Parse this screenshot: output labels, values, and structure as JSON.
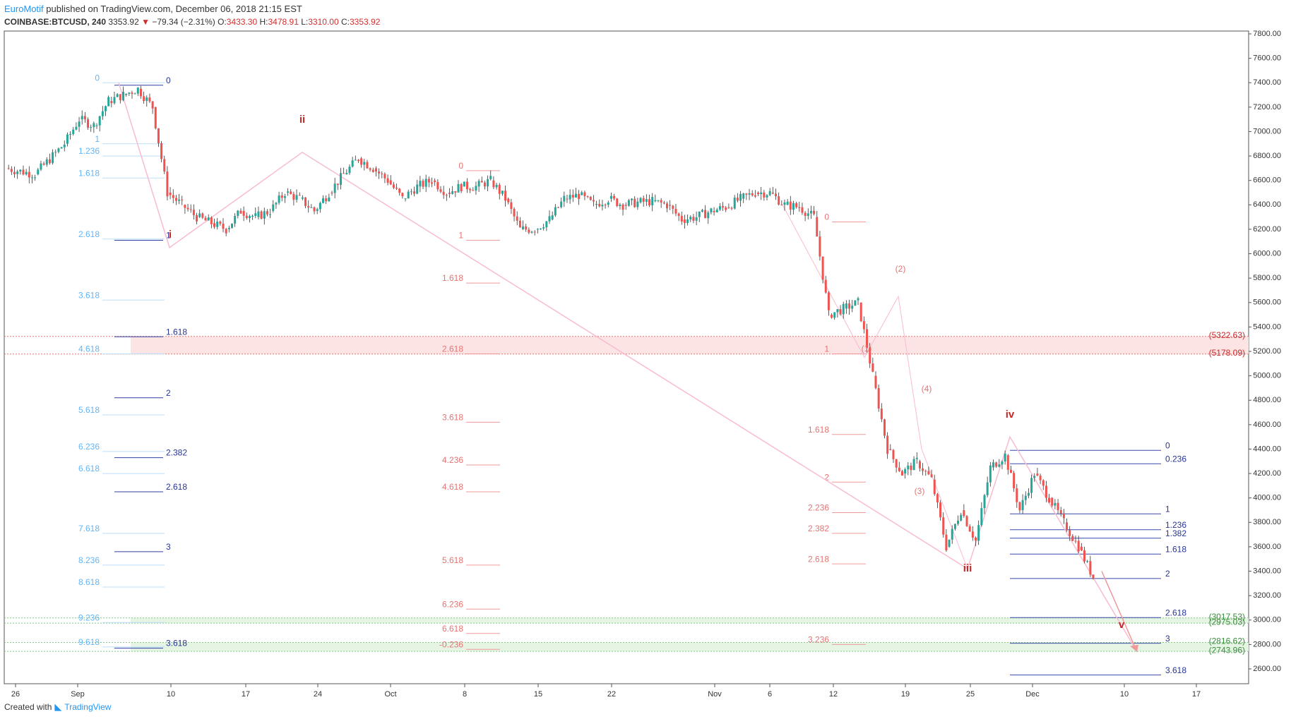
{
  "header": {
    "author": "EuroMotif",
    "published": "published on TradingView.com, December 06, 2018 21:15 EST",
    "symbol": "COINBASE:BTCUSD, 240",
    "last": "3353.92",
    "change": "−79.34 (−2.31%)",
    "o_label": "O:",
    "o": "3433.30",
    "h_label": "H:",
    "h": "3478.91",
    "l_label": "L:",
    "l": "3310.00",
    "c_label": "C:",
    "c": "3353.92"
  },
  "footer": {
    "created": "Created with",
    "brand": "TradingView"
  },
  "colors": {
    "up": "#26a69a",
    "down": "#ef5350",
    "fib_light": "#90caf9",
    "fib_dark": "#1a237e",
    "fib_pink": "#ef9a9a",
    "zone_red": "#fde4e4",
    "zone_green": "#e6f4e4"
  },
  "chart_data": {
    "type": "candlestick",
    "y_axis": {
      "min": 2600,
      "max": 7800,
      "ticks": [
        "7800.00",
        "7600.00",
        "7400.00",
        "7200.00",
        "7000.00",
        "6800.00",
        "6600.00",
        "6400.00",
        "6200.00",
        "6000.00",
        "5800.00",
        "5600.00",
        "5400.00",
        "5200.00",
        "5000.00",
        "4800.00",
        "4600.00",
        "4400.00",
        "4200.00",
        "4000.00",
        "3800.00",
        "3600.00",
        "3400.00",
        "3200.00",
        "3000.00",
        "2800.00",
        "2600.00"
      ]
    },
    "x_axis": {
      "ticks": [
        "26",
        "Sep",
        "10",
        "17",
        "24",
        "Oct",
        "8",
        "15",
        "22",
        "Nov",
        "6",
        "12",
        "19",
        "25",
        "Dec",
        "10",
        "17"
      ]
    },
    "price_path": [
      [
        0,
        6700
      ],
      [
        2,
        6650
      ],
      [
        4,
        6900
      ],
      [
        5,
        7100
      ],
      [
        6,
        7050
      ],
      [
        7,
        7250
      ],
      [
        8,
        7300
      ],
      [
        9,
        7350
      ],
      [
        10,
        7200
      ],
      [
        11,
        6500
      ],
      [
        12,
        6400
      ],
      [
        13,
        6300
      ],
      [
        14,
        6250
      ],
      [
        15,
        6200
      ],
      [
        16,
        6350
      ],
      [
        17,
        6300
      ],
      [
        18,
        6350
      ],
      [
        19,
        6500
      ],
      [
        20,
        6450
      ],
      [
        21,
        6350
      ],
      [
        22,
        6500
      ],
      [
        23,
        6650
      ],
      [
        24,
        6780
      ],
      [
        25,
        6700
      ],
      [
        26,
        6600
      ],
      [
        27,
        6450
      ],
      [
        28,
        6550
      ],
      [
        29,
        6600
      ],
      [
        30,
        6500
      ],
      [
        31,
        6550
      ],
      [
        32,
        6550
      ],
      [
        33,
        6600
      ],
      [
        34,
        6450
      ],
      [
        35,
        6200
      ],
      [
        36,
        6200
      ],
      [
        37,
        6280
      ],
      [
        38,
        6450
      ],
      [
        39,
        6480
      ],
      [
        40,
        6400
      ],
      [
        41,
        6450
      ],
      [
        42,
        6400
      ],
      [
        43,
        6420
      ],
      [
        44,
        6430
      ],
      [
        45,
        6400
      ],
      [
        46,
        6280
      ],
      [
        47,
        6300
      ],
      [
        48,
        6350
      ],
      [
        49,
        6380
      ],
      [
        50,
        6450
      ],
      [
        51,
        6500
      ],
      [
        52,
        6500
      ],
      [
        53,
        6400
      ],
      [
        54,
        6380
      ],
      [
        55,
        6300
      ],
      [
        56,
        5500
      ],
      [
        57,
        5550
      ],
      [
        58,
        5600
      ],
      [
        59,
        5000
      ],
      [
        60,
        4400
      ],
      [
        61,
        4200
      ],
      [
        62,
        4300
      ],
      [
        63,
        4150
      ],
      [
        64,
        3600
      ],
      [
        65,
        3900
      ],
      [
        66,
        3650
      ],
      [
        67,
        4250
      ],
      [
        68,
        4350
      ],
      [
        69,
        3900
      ],
      [
        70,
        4200
      ],
      [
        71,
        4000
      ],
      [
        72,
        3800
      ],
      [
        73,
        3600
      ],
      [
        74,
        3350
      ]
    ],
    "fib_left_light": {
      "levels": [
        "0",
        "1",
        "1.236",
        "1.618",
        "2.618",
        "3.618",
        "4.618",
        "5.618",
        "6.236",
        "6.618",
        "7.618",
        "8.236",
        "8.618",
        "9.236",
        "9.618"
      ],
      "prices": [
        7400,
        6900,
        6800,
        6620,
        6120,
        5620,
        5180,
        4680,
        4380,
        4200,
        3710,
        3450,
        3270,
        2980,
        2780
      ]
    },
    "fib_left_dark": {
      "levels": [
        "0",
        "1",
        "1.618",
        "2",
        "2.382",
        "2.618",
        "3",
        "3.618"
      ],
      "prices": [
        7380,
        6110,
        5320,
        4820,
        4330,
        4050,
        3560,
        2770
      ]
    },
    "fib_mid_pink": {
      "levels": [
        "0",
        "1",
        "1.618",
        "2.618",
        "3.618",
        "4.236",
        "4.618",
        "5.618",
        "6.236",
        "6.618",
        "-0.236"
      ],
      "prices": [
        6680,
        6110,
        5760,
        5180,
        4620,
        4270,
        4050,
        3450,
        3090,
        2890,
        2760
      ]
    },
    "fib_right_pink": {
      "levels": [
        "0",
        "1",
        "1.618",
        "2",
        "2.236",
        "2.382",
        "2.618",
        "3.236"
      ],
      "prices": [
        6260,
        5180,
        4520,
        4130,
        3880,
        3710,
        3460,
        2800
      ]
    },
    "fib_right_blue": {
      "levels": [
        "0",
        "0.236",
        "1",
        "1.236",
        "1.382",
        "1.618",
        "2",
        "2.618",
        "3",
        "3.618"
      ],
      "prices": [
        4390,
        4280,
        3870,
        3740,
        3670,
        3540,
        3340,
        3020,
        2810,
        2550
      ]
    },
    "zones": {
      "red_top": "(5322.63)",
      "red_bottom": "(5178.09)",
      "green1_top": "(3017.53)",
      "green1_bottom": "(2975.03)",
      "green2_top": "(2816.62)",
      "green2_bottom": "(2743.96)"
    },
    "wave_labels": {
      "i": "i",
      "ii": "ii",
      "iii": "iii",
      "iv": "iv",
      "v": "v",
      "w1": "(1)",
      "w2": "(2)",
      "w3": "(3)",
      "w4": "(4)"
    }
  }
}
